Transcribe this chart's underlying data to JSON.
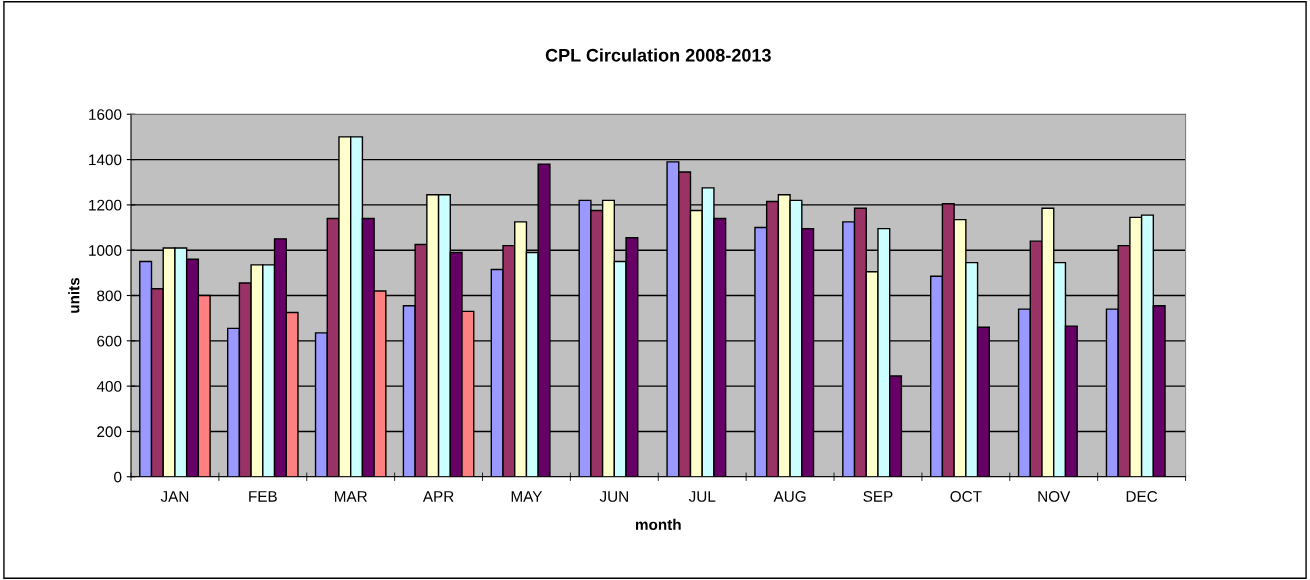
{
  "chart_data": {
    "type": "bar",
    "title": "CPL Circulation 2008-2013",
    "xlabel": "month",
    "ylabel": "units",
    "categories": [
      "JAN",
      "FEB",
      "MAR",
      "APR",
      "MAY",
      "JUN",
      "JUL",
      "AUG",
      "SEP",
      "OCT",
      "NOV",
      "DEC"
    ],
    "series": [
      {
        "color": "#9999ff",
        "values": [
          950,
          655,
          635,
          755,
          915,
          1220,
          1390,
          1100,
          1125,
          885,
          740,
          740
        ]
      },
      {
        "color": "#993366",
        "values": [
          830,
          855,
          1140,
          1025,
          1020,
          1175,
          1345,
          1215,
          1185,
          1205,
          1040,
          1020
        ]
      },
      {
        "color": "#ffffcc",
        "values": [
          1010,
          935,
          1500,
          1245,
          1125,
          1220,
          1175,
          1245,
          905,
          1135,
          1185,
          1145
        ]
      },
      {
        "color": "#ccffff",
        "values": [
          1010,
          935,
          1500,
          1245,
          990,
          950,
          1275,
          1220,
          1095,
          945,
          945,
          1155
        ]
      },
      {
        "color": "#660066",
        "values": [
          960,
          1050,
          1140,
          990,
          1380,
          1055,
          1140,
          1095,
          445,
          660,
          665,
          755
        ]
      },
      {
        "color": "#ff8080",
        "values": [
          800,
          725,
          820,
          730,
          null,
          null,
          null,
          null,
          null,
          null,
          null,
          null
        ]
      }
    ],
    "ylim": [
      0,
      1600
    ],
    "yticks": [
      0,
      200,
      400,
      600,
      800,
      1000,
      1200,
      1400,
      1600
    ],
    "grid": "y",
    "legend": false
  }
}
